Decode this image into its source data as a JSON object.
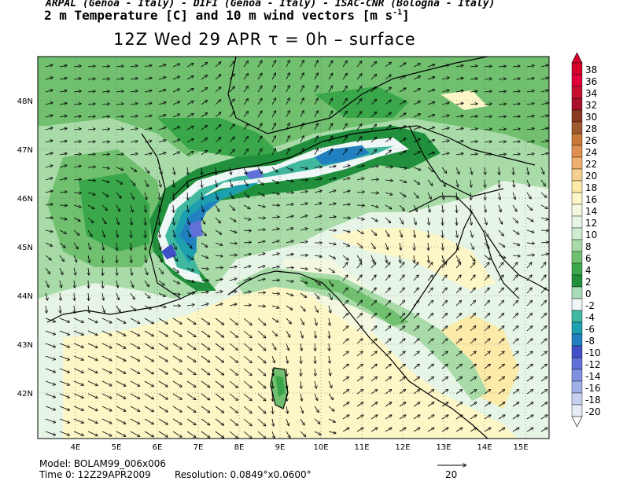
{
  "header": {
    "line1": "ARPAL (Genoa - Italy)  -  DIFI (Genoa - Italy)  -  ISAC-CNR (Bologna - Italy)",
    "line2_main": "2 m Temperature [C] and 10 m wind vectors [m s",
    "line2_sup": "-1",
    "line2_end": "]",
    "line3": "12Z Wed 29 APR  τ = 0h  –  surface"
  },
  "axes": {
    "lon_labels": [
      "4E",
      "5E",
      "6E",
      "7E",
      "8E",
      "9E",
      "10E",
      "11E",
      "12E",
      "13E",
      "14E",
      "15E"
    ],
    "lat_labels": [
      "48N",
      "47N",
      "46N",
      "45N",
      "44N",
      "43N",
      "42N"
    ]
  },
  "colorbar": {
    "labels": [
      "38",
      "36",
      "34",
      "32",
      "30",
      "28",
      "26",
      "24",
      "22",
      "20",
      "18",
      "16",
      "14",
      "12",
      "10",
      "8",
      "6",
      "4",
      "2",
      "0",
      "-2",
      "-4",
      "-6",
      "-8",
      "-10",
      "-12",
      "-14",
      "-16",
      "-18",
      "-20"
    ],
    "colors": [
      "#d4002b",
      "#e0003c",
      "#c8102e",
      "#a8102a",
      "#8a3a20",
      "#a05a30",
      "#c87838",
      "#e09050",
      "#f0b070",
      "#f5d090",
      "#fbeaa8",
      "#fdf6c6",
      "#f5f8e0",
      "#e6f5e6",
      "#cfeccf",
      "#a8dba8",
      "#70c070",
      "#3aa84a",
      "#20903c",
      "#a8dcb8",
      "#eef6f6",
      "#40b8a0",
      "#1ca0b0",
      "#2080c0",
      "#4050c8",
      "#6070d8",
      "#8090e0",
      "#a0b0e8",
      "#c8d0f0",
      "#e8ecf8"
    ]
  },
  "footer": {
    "model": "Model: BOLAM99_006x006",
    "time": "Time 0:  12Z29APR2009",
    "resolution": "Resolution:  0.0849°x0.0600°",
    "vector_ref": "20"
  }
}
